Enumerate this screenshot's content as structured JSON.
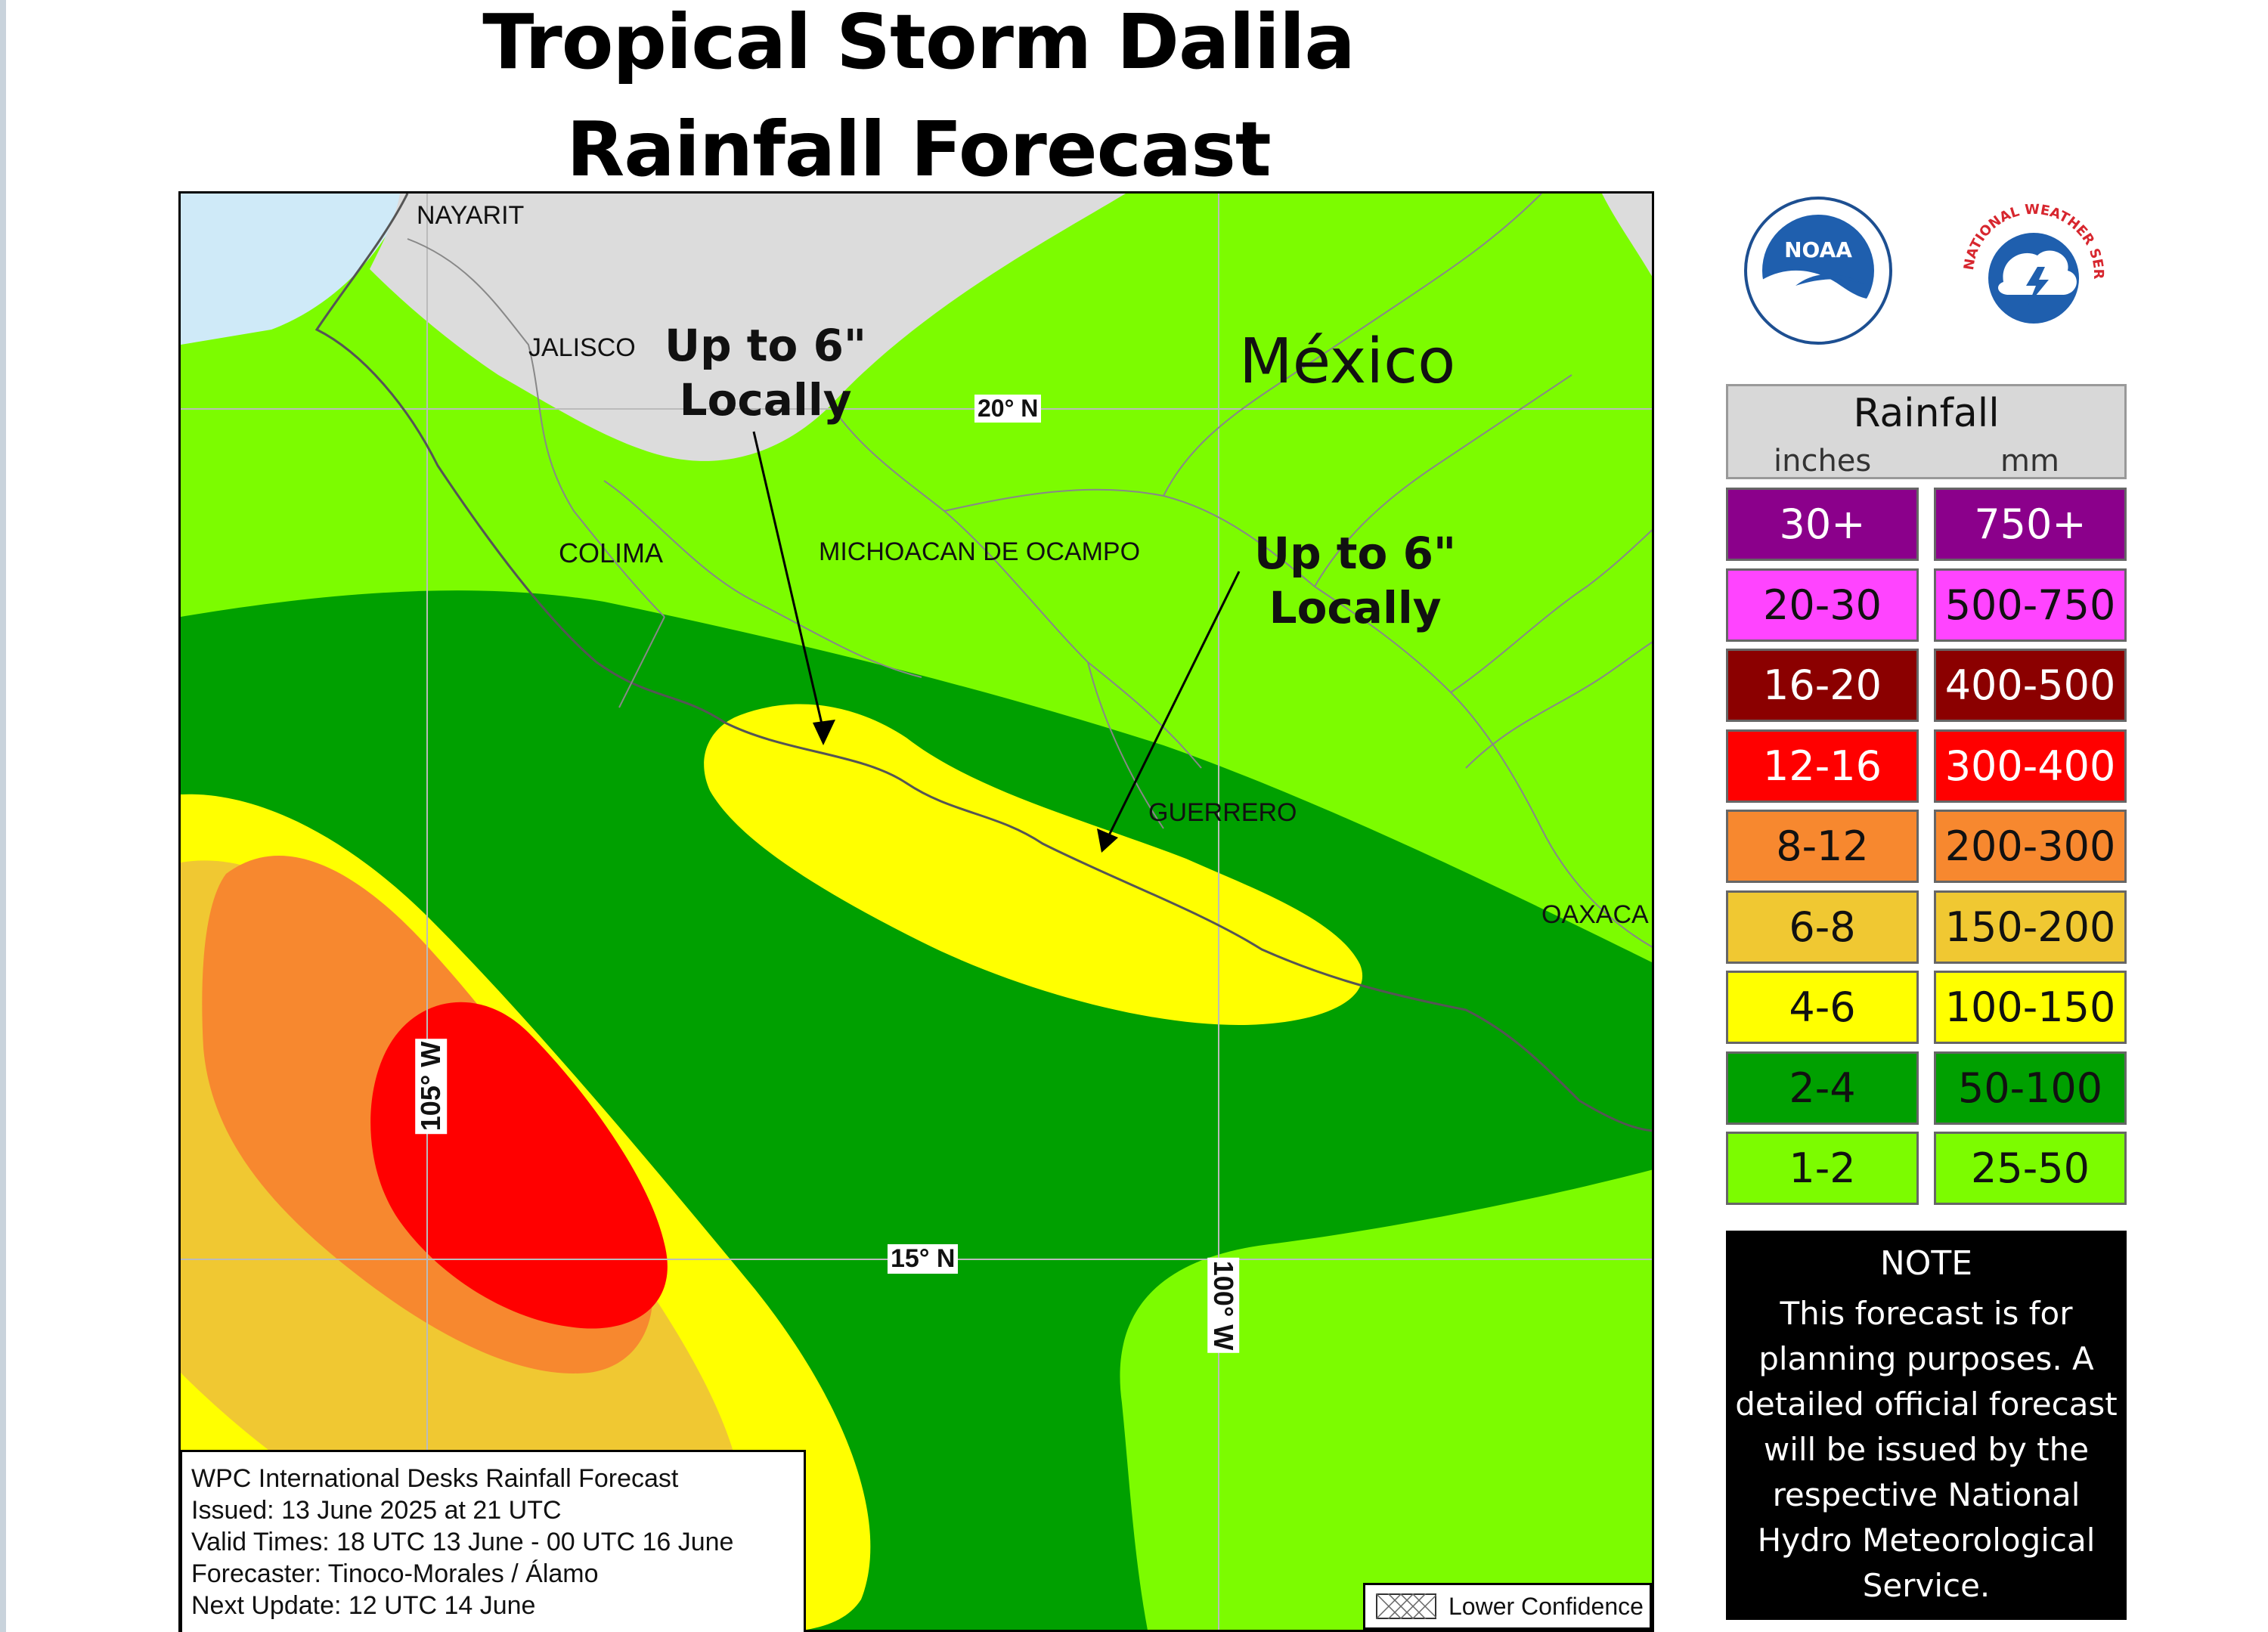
{
  "title": {
    "line1": "Tropical Storm Dalila",
    "line2": "Rainfall Forecast"
  },
  "map": {
    "country": "México",
    "states": [
      "NAYARIT",
      "JALISCO",
      "COLIMA",
      "MICHOACAN DE OCAMPO",
      "GUERRERO",
      "OAXACA"
    ],
    "graticule": {
      "lat_20": "20° N",
      "lat_15": "15° N",
      "lon_105": "105° W",
      "lon_100": "100° W"
    },
    "annotations": [
      {
        "line1": "Up to 6\"",
        "line2": "Locally"
      },
      {
        "line1": "Up to 6\"",
        "line2": "Locally"
      }
    ],
    "colors": {
      "water": "#cfeaf8",
      "land": "#dcdcdc"
    }
  },
  "legend": {
    "title": "Rainfall",
    "unit_in": "inches",
    "unit_mm": "mm",
    "rows": [
      {
        "in": "30+",
        "mm": "750+",
        "color": "#8b008b"
      },
      {
        "in": "20-30",
        "mm": "500-750",
        "color": "#ff44ff"
      },
      {
        "in": "16-20",
        "mm": "400-500",
        "color": "#8b0000"
      },
      {
        "in": "12-16",
        "mm": "300-400",
        "color": "#ff0000"
      },
      {
        "in": "8-12",
        "mm": "200-300",
        "color": "#f7882f"
      },
      {
        "in": "6-8",
        "mm": "150-200",
        "color": "#f0c832"
      },
      {
        "in": "4-6",
        "mm": "100-150",
        "color": "#ffff00"
      },
      {
        "in": "2-4",
        "mm": "50-100",
        "color": "#00a000"
      },
      {
        "in": "1-2",
        "mm": "25-50",
        "color": "#7cfc00"
      }
    ]
  },
  "logos": {
    "noaa": "NOAA",
    "nws": "NATIONAL WEATHER SERVICE"
  },
  "note": {
    "title": "NOTE",
    "lines": [
      "This forecast is for",
      "planning purposes. A",
      "detailed official forecast",
      "will be issued by the",
      "respective National",
      "Hydro Meteorological",
      "Service."
    ]
  },
  "info": {
    "line1": "WPC International Desks Rainfall Forecast",
    "line2": "Issued: 13 June 2025 at 21 UTC",
    "line3": "Valid Times: 18 UTC 13 June - 00 UTC 16 June",
    "line4": "Forecaster: Tinoco-Morales / Álamo",
    "line5": "Next Update: 12 UTC 14 June"
  },
  "lower_confidence": "Lower Confidence"
}
